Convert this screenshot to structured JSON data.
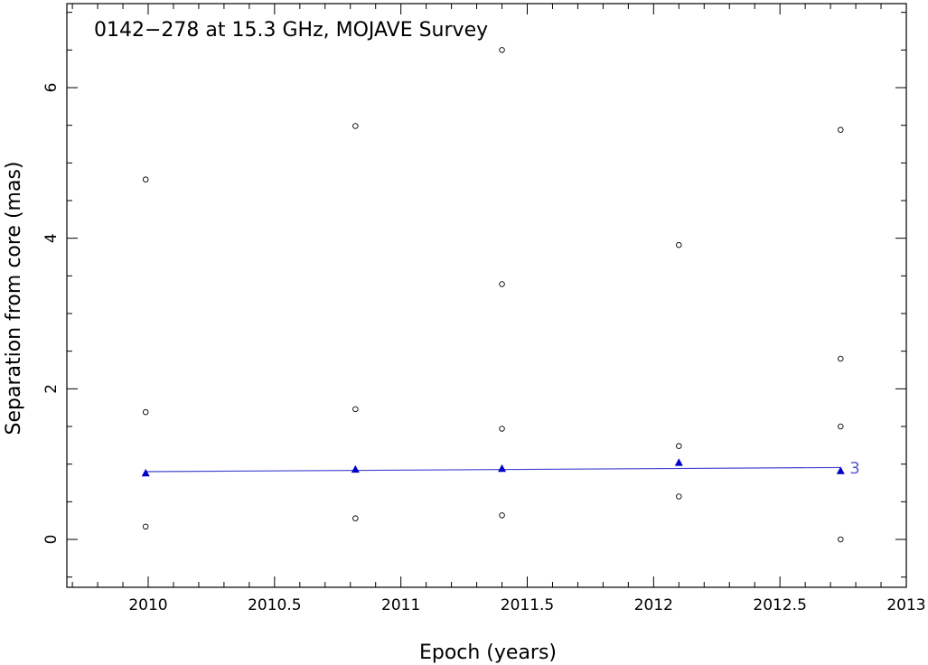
{
  "chart_data": {
    "type": "scatter",
    "title": "0142−278 at 15.3 GHz, MOJAVE Survey",
    "xlabel": "Epoch (years)",
    "ylabel": "Separation from core (mas)",
    "xlim": [
      2009.7,
      2013.0
    ],
    "ylim": [
      -0.65,
      7.1
    ],
    "xticks": [
      2010,
      2010.5,
      2011,
      2011.5,
      2012,
      2012.5,
      2013
    ],
    "xtick_labels": [
      "2010",
      "2010.5",
      "2011",
      "2011.5",
      "2012",
      "2012.5",
      "2013"
    ],
    "yticks": [
      0,
      2,
      4,
      6
    ],
    "ytick_labels": [
      "0",
      "2",
      "4",
      "6"
    ],
    "grid": false,
    "colors": {
      "highlight": "#0000c8",
      "fit_line": "#4040d0",
      "label": "#5a5ad6",
      "other": "#000000"
    },
    "series": [
      {
        "marker": "open-circle",
        "x": [
          2009.99,
          2009.99,
          2009.99,
          2010.82,
          2010.82,
          2010.82,
          2011.4,
          2011.4,
          2011.4,
          2011.4,
          2012.1,
          2012.1,
          2012.1,
          2012.74,
          2012.74,
          2012.74,
          2012.74
        ],
        "y": [
          0.17,
          1.69,
          4.78,
          0.28,
          1.73,
          5.49,
          0.32,
          1.47,
          3.39,
          6.5,
          0.57,
          1.24,
          3.91,
          1.5,
          2.4,
          5.44,
          0.0
        ]
      },
      {
        "marker": "filled-triangle",
        "component": "3",
        "x": [
          2009.99,
          2010.82,
          2011.4,
          2012.1,
          2012.74
        ],
        "y": [
          0.88,
          0.93,
          0.94,
          1.02,
          0.91
        ],
        "fit": {
          "x": [
            2009.99,
            2012.74
          ],
          "y": [
            0.9,
            0.955
          ]
        }
      }
    ]
  }
}
